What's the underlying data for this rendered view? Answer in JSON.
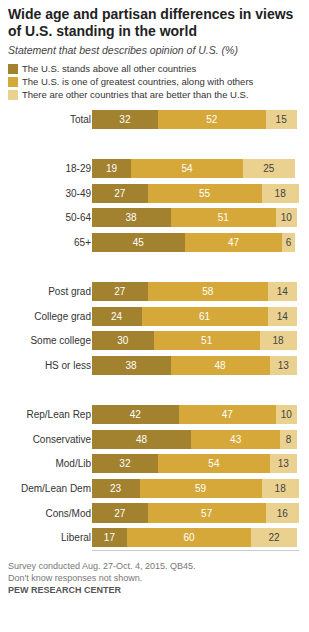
{
  "chart_data": {
    "type": "bar",
    "title": "Wide age and partisan differences in views of U.S. standing in the world",
    "subtitle": "Statement that best describes opinion of U.S. (%)",
    "orientation": "horizontal",
    "stacked": true,
    "data_labels": true,
    "tick_labels": "y",
    "xlim": [
      0,
      100
    ],
    "categories": [
      "Total",
      null,
      "18-29",
      "30-49",
      "50-64",
      "65+",
      null,
      "Post grad",
      "College grad",
      "Some college",
      "HS or less",
      null,
      "Rep/Lean Rep",
      "Conservative",
      "Mod/Lib",
      "Dem/Lean Dem",
      "Cons/Mod",
      "Liberal"
    ],
    "series": [
      {
        "name": "The U.S. stands above all other countries",
        "color": "#a2812f",
        "values": [
          32,
          null,
          19,
          27,
          38,
          45,
          null,
          27,
          24,
          30,
          38,
          null,
          42,
          48,
          32,
          23,
          27,
          17
        ]
      },
      {
        "name": "The U.S. is one of greatest countries, along with others",
        "color": "#d6a83a",
        "values": [
          52,
          null,
          54,
          55,
          51,
          47,
          null,
          58,
          61,
          51,
          48,
          null,
          47,
          43,
          54,
          59,
          57,
          60
        ]
      },
      {
        "name": "There are other countries that are better than the U.S.",
        "color": "#ead18f",
        "values": [
          15,
          null,
          25,
          18,
          10,
          6,
          null,
          14,
          14,
          18,
          13,
          null,
          10,
          8,
          13,
          18,
          16,
          22
        ]
      }
    ],
    "notes": [
      "Survey conducted Aug. 27-Oct. 4, 2015. QB45.",
      "Don't know responses not shown."
    ],
    "source": "PEW RESEARCH CENTER"
  }
}
